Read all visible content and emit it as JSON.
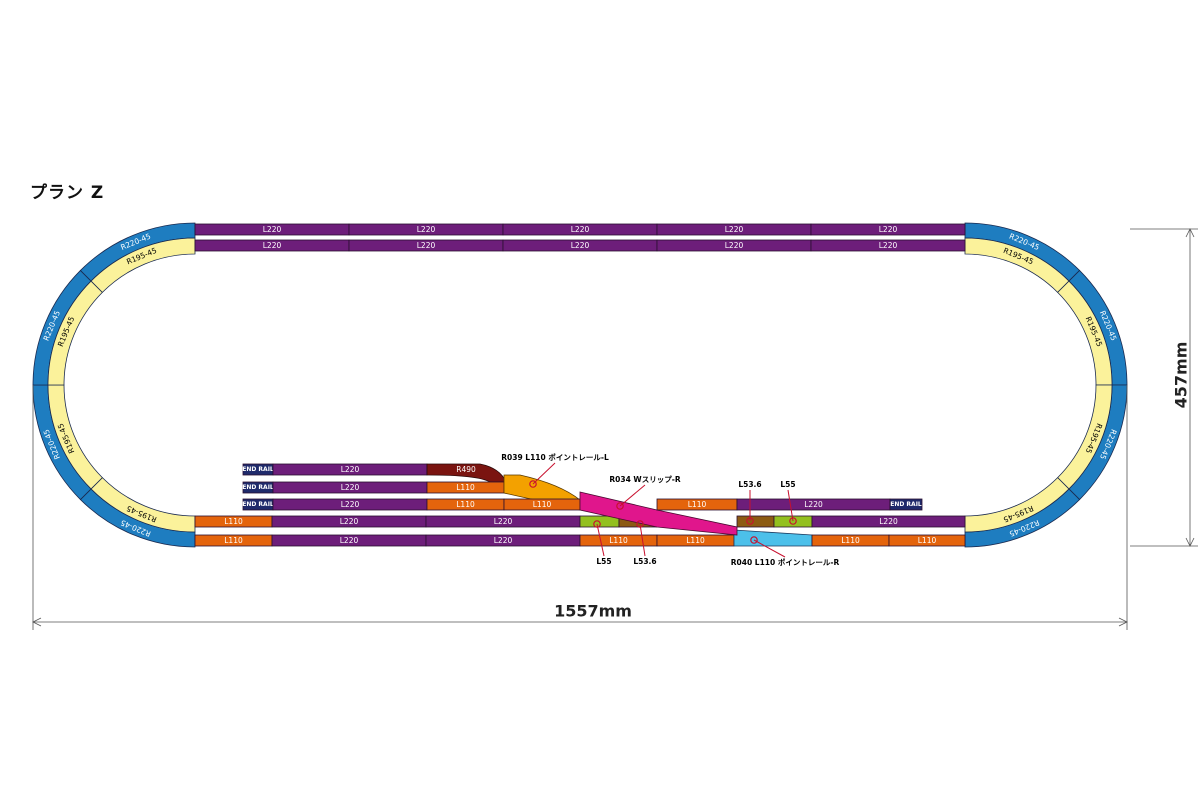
{
  "title": "プラン Z",
  "dimensions": {
    "width": "1557mm",
    "height": "457mm"
  },
  "colors": {
    "L220": "#6d1e7a",
    "L110": "#e4640c",
    "L55": "#93c01f",
    "L53_6": "#8c5a12",
    "R220": "#1e7dc0",
    "R195": "#fbf29b",
    "R490": "#7a1410",
    "point_L": "#f3a100",
    "point_R": "#4cc0ea",
    "w_slip": "#e0168c",
    "end_rail": "#1f2a6b"
  },
  "labels": {
    "L220": "L220",
    "L110": "L110",
    "L55": "L55",
    "L53_6": "L53.6",
    "R220_45": "R220-45",
    "R195_45": "R195-45",
    "R490": "R490",
    "end_rail": "END RAIL"
  },
  "callouts": {
    "point_left": "R039  L110 ポイントレール-L",
    "w_slip": "R034  Wスリップ-R",
    "point_right": "R040  L110  ポイントレール-R",
    "top_l53": "L53.6",
    "top_l55": "L55",
    "bottom_l55": "L55",
    "bottom_l53": "L53.6"
  }
}
